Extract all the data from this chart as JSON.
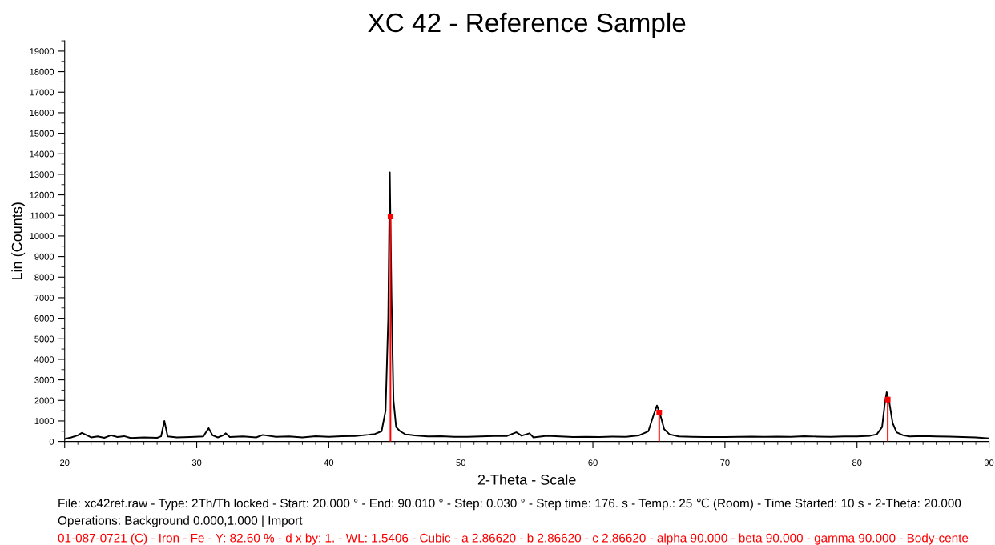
{
  "chart_data": {
    "type": "line",
    "title": "XC 42 - Reference Sample",
    "xlabel": "2-Theta - Scale",
    "ylabel": "Lin (Counts)",
    "xlim": [
      20,
      90
    ],
    "xticks": [
      20,
      30,
      40,
      50,
      60,
      70,
      80,
      90
    ],
    "ylim": [
      0,
      19500
    ],
    "yticks": [
      0,
      1000,
      2000,
      3000,
      4000,
      5000,
      6000,
      7000,
      8000,
      9000,
      10000,
      11000,
      12000,
      13000,
      14000,
      15000,
      16000,
      17000,
      18000,
      19000
    ],
    "grid": false,
    "legend": false,
    "series": [
      {
        "color": "#000000",
        "marker": "none",
        "x": [
          20.0,
          20.5,
          21.0,
          21.3,
          21.6,
          22.0,
          22.5,
          23.0,
          23.5,
          24.0,
          24.5,
          25.0,
          26.0,
          27.0,
          27.3,
          27.55,
          27.8,
          28.5,
          29.5,
          30.5,
          30.9,
          31.2,
          31.6,
          32.0,
          32.2,
          32.5,
          33.5,
          34.5,
          35.0,
          36.0,
          37.0,
          38.0,
          39.0,
          40.0,
          41.0,
          42.0,
          43.0,
          43.5,
          44.0,
          44.3,
          44.5,
          44.62,
          44.75,
          44.9,
          45.1,
          45.4,
          45.8,
          46.5,
          47.5,
          48.5,
          49.5,
          50.5,
          51.5,
          52.5,
          53.5,
          54.2,
          54.6,
          55.2,
          55.5,
          56.5,
          57.5,
          58.5,
          59.5,
          60.5,
          61.5,
          62.5,
          63.5,
          64.2,
          64.6,
          64.85,
          65.1,
          65.4,
          65.8,
          66.5,
          67.5,
          68.5,
          70.0,
          71.0,
          72.0,
          73.0,
          74.0,
          75.0,
          76.0,
          77.0,
          78.0,
          79.0,
          80.0,
          81.0,
          81.5,
          81.9,
          82.1,
          82.25,
          82.45,
          82.7,
          83.0,
          83.5,
          84.0,
          85.0,
          86.0,
          87.0,
          88.0,
          89.0,
          90.0
        ],
        "values": [
          120,
          200,
          300,
          420,
          330,
          200,
          250,
          180,
          300,
          220,
          260,
          170,
          200,
          180,
          250,
          1000,
          250,
          200,
          220,
          250,
          650,
          300,
          200,
          300,
          400,
          220,
          250,
          200,
          320,
          230,
          250,
          200,
          260,
          230,
          260,
          270,
          330,
          370,
          500,
          1500,
          6000,
          13100,
          7000,
          2000,
          700,
          500,
          350,
          300,
          250,
          260,
          230,
          230,
          250,
          270,
          270,
          450,
          280,
          400,
          200,
          280,
          250,
          220,
          230,
          220,
          240,
          230,
          300,
          500,
          1300,
          1750,
          1300,
          600,
          350,
          250,
          230,
          220,
          220,
          230,
          240,
          230,
          240,
          230,
          260,
          240,
          230,
          250,
          250,
          280,
          350,
          700,
          1800,
          2400,
          1900,
          900,
          450,
          300,
          250,
          270,
          250,
          240,
          220,
          200,
          150
        ]
      },
      {
        "type": "lollipop",
        "name": "01-087-0721 (C) - Iron - Fe - Y: 82.60 % - d x by: 1. - WL: 1.5406 - Cubic - a 2.86620 - b 2.86620 - c 2.86620 - alpha 90.000 - beta 90.000 - gamma 90.000 - Body-cente",
        "color": "#ff0000",
        "marker": "square",
        "x": [
          44.67,
          65.02,
          82.33
        ],
        "values": [
          10950,
          1410,
          2040
        ]
      }
    ],
    "annotations": [
      "File: xc42ref.raw - Type: 2Th/Th locked - Start: 20.000 ° - End: 90.010 ° - Step: 0.030 ° - Step time: 176. s - Temp.: 25 ℃ (Room) - Time Started: 10 s - 2-Theta: 20.000",
      "Operations: Background 0.000,1.000 | Import"
    ]
  }
}
